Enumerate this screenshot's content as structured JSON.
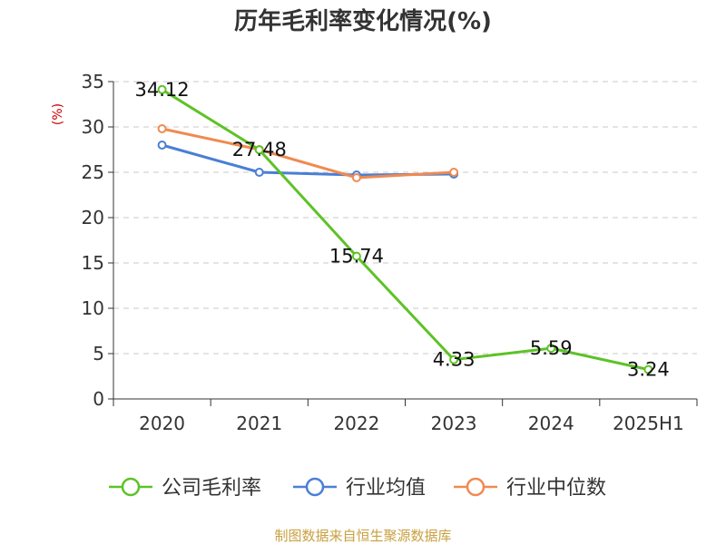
{
  "source_note": "制图数据来自恒生聚源数据库",
  "chart_data": {
    "type": "line",
    "title": "历年毛利率变化情况(%)",
    "ylabel": "(%)",
    "categories": [
      "2020",
      "2021",
      "2022",
      "2023",
      "2024",
      "2025H1"
    ],
    "ylim": [
      0,
      35
    ],
    "yticks": [
      0,
      5,
      10,
      15,
      20,
      25,
      30,
      35
    ],
    "grid": "horizontal-dashed",
    "legend_position": "bottom",
    "series": [
      {
        "name": "公司毛利率",
        "color": "#5ec227",
        "values": [
          34.12,
          27.48,
          15.74,
          4.33,
          5.59,
          3.24
        ],
        "labels": [
          "34.12",
          "27.48",
          "15.74",
          "4.33",
          "5.59",
          "3.24"
        ]
      },
      {
        "name": "行业均值",
        "color": "#4a7fd4",
        "values": [
          28.0,
          25.0,
          24.7,
          24.8,
          null,
          null
        ]
      },
      {
        "name": "行业中位数",
        "color": "#f08a50",
        "values": [
          29.8,
          27.5,
          24.4,
          25.0,
          null,
          null
        ]
      }
    ]
  }
}
